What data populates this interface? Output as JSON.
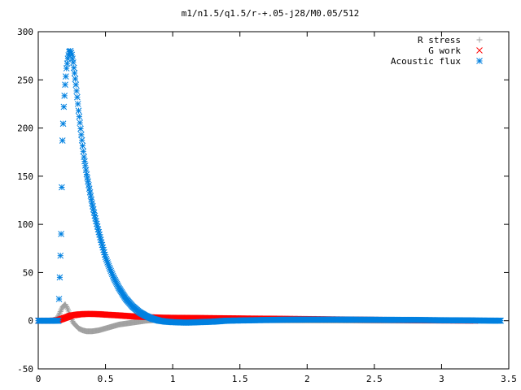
{
  "chart_data": {
    "type": "scatter",
    "title": "m1/n1.5/q1.5/r-+.05-j28/M0.05/512",
    "xlabel": "",
    "ylabel": "",
    "xlim": [
      0,
      3.5
    ],
    "ylim": [
      -50,
      300
    ],
    "x_ticks": [
      "0",
      "0.5",
      "1",
      "1.5",
      "2",
      "2.5",
      "3",
      "3.5"
    ],
    "y_ticks": [
      "-50",
      "0",
      "50",
      "100",
      "150",
      "200",
      "250",
      "300"
    ],
    "grid": false,
    "legend_position": "top-right",
    "series": [
      {
        "name": "R stress",
        "marker": "plus",
        "color": "#a0a0a0",
        "x": [
          0.0,
          0.1,
          0.14,
          0.16,
          0.18,
          0.2,
          0.22,
          0.24,
          0.26,
          0.28,
          0.3,
          0.33,
          0.36,
          0.4,
          0.45,
          0.5,
          0.55,
          0.6,
          0.65,
          0.7,
          0.75,
          0.8,
          0.85,
          0.9,
          0.95,
          1.0,
          1.2,
          1.5,
          2.0,
          2.5,
          3.0,
          3.44
        ],
        "y": [
          0,
          0,
          2,
          8,
          14,
          17,
          12,
          4,
          -2,
          -5,
          -8,
          -10,
          -11,
          -11,
          -10,
          -8,
          -6,
          -4,
          -3,
          -2,
          -1,
          0,
          0.5,
          1,
          1.2,
          1.2,
          1.0,
          0.6,
          0.3,
          0.1,
          0,
          0
        ]
      },
      {
        "name": "G work",
        "marker": "cross",
        "color": "#ff0000",
        "x": [
          0.0,
          0.1,
          0.15,
          0.2,
          0.25,
          0.3,
          0.35,
          0.4,
          0.45,
          0.5,
          0.6,
          0.7,
          0.8,
          0.9,
          1.0,
          1.2,
          1.4,
          1.6,
          1.8,
          2.0,
          2.2,
          2.4,
          2.6,
          2.8,
          3.0,
          3.2,
          3.25
        ],
        "y": [
          0,
          0,
          0.5,
          3,
          5.5,
          6.5,
          7,
          7,
          6.8,
          6.3,
          5.5,
          4.5,
          3.8,
          3.2,
          3,
          2.8,
          2.5,
          2.2,
          2,
          1.7,
          1.4,
          1.1,
          0.8,
          0.5,
          0.3,
          0.1,
          0
        ]
      },
      {
        "name": "Acoustic flux",
        "marker": "star",
        "color": "#0080e0",
        "x": [
          0.0,
          0.1,
          0.15,
          0.17,
          0.18,
          0.19,
          0.2,
          0.21,
          0.22,
          0.23,
          0.24,
          0.25,
          0.26,
          0.27,
          0.28,
          0.29,
          0.3,
          0.32,
          0.34,
          0.36,
          0.38,
          0.4,
          0.42,
          0.45,
          0.48,
          0.5,
          0.53,
          0.56,
          0.6,
          0.65,
          0.7,
          0.75,
          0.8,
          0.85,
          0.9,
          0.95,
          1.0,
          1.1,
          1.2,
          1.3,
          1.4,
          1.6,
          1.8,
          2.0,
          2.2,
          2.5,
          2.8,
          3.0,
          3.2,
          3.44
        ],
        "y": [
          0,
          0,
          0,
          90,
          187,
          222,
          245,
          262,
          272,
          279,
          280,
          276,
          268,
          257,
          245,
          232,
          218,
          193,
          170,
          152,
          137,
          122,
          109,
          92,
          76,
          66,
          55,
          45,
          34,
          23,
          15,
          9,
          5,
          2,
          0,
          -1,
          -1.5,
          -2,
          -1.5,
          -1,
          0,
          0.5,
          1,
          1.2,
          1.2,
          1,
          0.8,
          0.5,
          0.3,
          0
        ]
      }
    ]
  }
}
